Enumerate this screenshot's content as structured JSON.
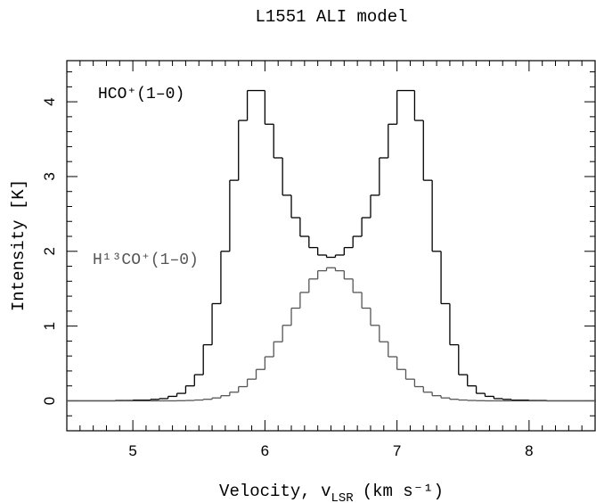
{
  "chart_data": {
    "type": "step",
    "title": "L1551 ALI model",
    "xlabel": {
      "text": "Velocity, v",
      "sub": "LSR",
      "unit": "(km s⁻¹)"
    },
    "ylabel": "Intensity [K]",
    "x": [
      4.5,
      4.567,
      4.633,
      4.7,
      4.767,
      4.833,
      4.9,
      4.967,
      5.033,
      5.1,
      5.167,
      5.233,
      5.3,
      5.367,
      5.433,
      5.5,
      5.567,
      5.633,
      5.7,
      5.767,
      5.833,
      5.9,
      5.967,
      6.033,
      6.1,
      6.167,
      6.233,
      6.3,
      6.367,
      6.433,
      6.5,
      6.567,
      6.633,
      6.7,
      6.767,
      6.833,
      6.9,
      6.967,
      7.033,
      7.1,
      7.167,
      7.233,
      7.3,
      7.367,
      7.433,
      7.5,
      7.567,
      7.633,
      7.7,
      7.767,
      7.833,
      7.9,
      7.967,
      8.033,
      8.1,
      8.167,
      8.233,
      8.3,
      8.367,
      8.433,
      8.5
    ],
    "series": [
      {
        "name": "HCO⁺(1–0)",
        "color": "#000000",
        "values": [
          0,
          0,
          0,
          0,
          0,
          0,
          0.005,
          0.005,
          0.01,
          0.01,
          0.02,
          0.03,
          0.06,
          0.1,
          0.2,
          0.35,
          0.75,
          1.3,
          2.0,
          2.95,
          3.75,
          4.15,
          4.15,
          3.7,
          3.25,
          2.75,
          2.45,
          2.2,
          2.05,
          1.95,
          1.92,
          1.95,
          2.05,
          2.2,
          2.45,
          2.75,
          3.25,
          3.7,
          4.15,
          4.15,
          3.75,
          2.95,
          2.0,
          1.3,
          0.75,
          0.35,
          0.2,
          0.1,
          0.06,
          0.03,
          0.02,
          0.01,
          0.01,
          0.005,
          0.005,
          0,
          0,
          0,
          0,
          0,
          0
        ]
      },
      {
        "name": "H¹³CO⁺(1–0)",
        "color": "#555555",
        "values": [
          0,
          0,
          0,
          0,
          0,
          0,
          0,
          0,
          0,
          0,
          0,
          0,
          0,
          0.002,
          0.005,
          0.011,
          0.021,
          0.039,
          0.069,
          0.116,
          0.19,
          0.29,
          0.42,
          0.59,
          0.79,
          1.01,
          1.24,
          1.45,
          1.63,
          1.74,
          1.78,
          1.74,
          1.63,
          1.45,
          1.24,
          1.01,
          0.79,
          0.59,
          0.42,
          0.29,
          0.19,
          0.116,
          0.069,
          0.039,
          0.021,
          0.011,
          0.005,
          0.002,
          0,
          0,
          0,
          0,
          0,
          0,
          0,
          0,
          0,
          0,
          0,
          0,
          0
        ]
      }
    ],
    "xlim": [
      4.5,
      8.5
    ],
    "ylim": [
      -0.4,
      4.55
    ],
    "xticks": [
      5,
      6,
      7,
      8
    ],
    "yticks": [
      0,
      1,
      2,
      3,
      4
    ],
    "xminorticks": [
      4.6,
      4.7,
      4.8,
      4.9,
      5.1,
      5.2,
      5.3,
      5.4,
      5.5,
      5.6,
      5.7,
      5.8,
      5.9,
      6.1,
      6.2,
      6.3,
      6.4,
      6.5,
      6.6,
      6.7,
      6.8,
      6.9,
      7.1,
      7.2,
      7.3,
      7.4,
      7.5,
      7.6,
      7.7,
      7.8,
      7.9,
      8.1,
      8.2,
      8.3,
      8.4
    ],
    "yminorticks": [
      -0.2,
      0.2,
      0.4,
      0.6,
      0.8,
      1.2,
      1.4,
      1.6,
      1.8,
      2.2,
      2.4,
      2.6,
      2.8,
      3.2,
      3.4,
      3.6,
      3.8,
      4.2,
      4.4
    ],
    "grid": false
  }
}
